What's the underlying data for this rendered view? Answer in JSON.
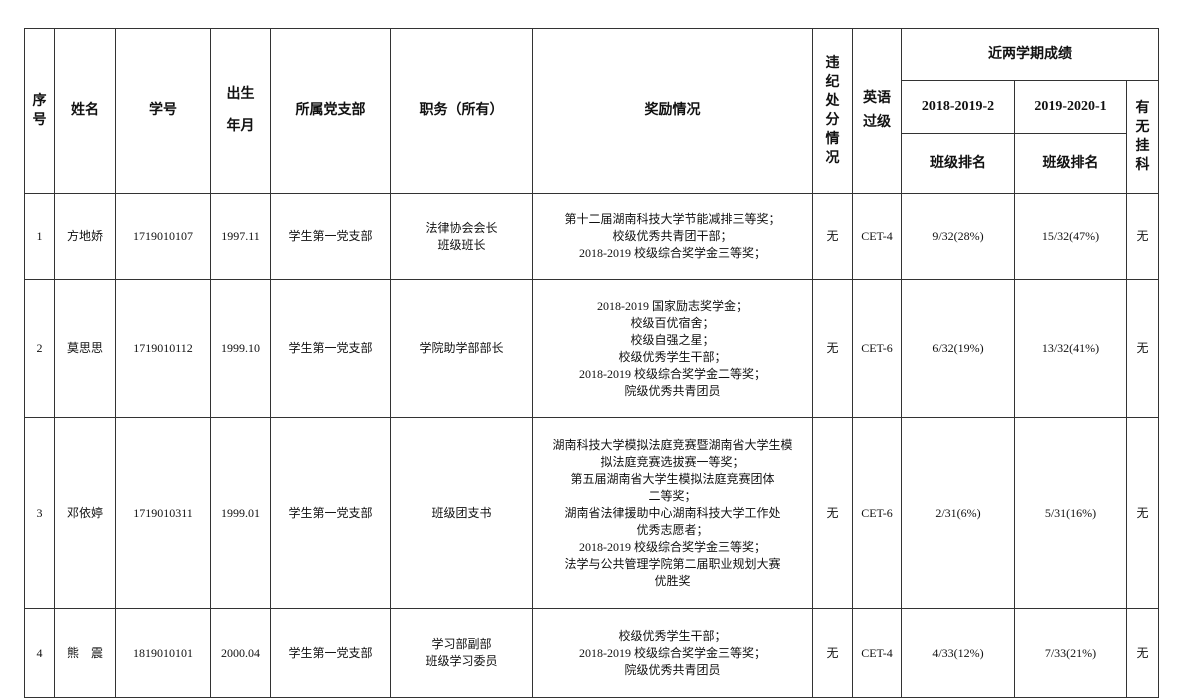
{
  "headers": {
    "index": "序\n号",
    "name": "姓名",
    "student_id": "学号",
    "birth": "出生\n年月",
    "branch": "所属党支部",
    "position": "职务（所有）",
    "awards": "奖励情况",
    "discipline": "违\n纪\n处\n分\n情\n况",
    "english": "英语\n过级",
    "grades": "近两学期成绩",
    "term1": "2018-2019-2",
    "term2": "2019-2020-1",
    "rank1": "班级排名",
    "rank2": "班级排名",
    "failed": "有\n无\n挂\n科"
  },
  "rows": [
    {
      "index": "1",
      "name": "方地娇",
      "student_id": "1719010107",
      "birth": "1997.11",
      "branch": "学生第一党支部",
      "position": "法律协会会长\n班级班长",
      "awards": "第十二届湖南科技大学节能减排三等奖；\n校级优秀共青团干部；\n2018-2019 校级综合奖学金三等奖；",
      "discipline": "无",
      "english": "CET-4",
      "rank1": "9/32(28%)",
      "rank2": "15/32(47%)",
      "failed": "无"
    },
    {
      "index": "2",
      "name": "莫思思",
      "student_id": "1719010112",
      "birth": "1999.10",
      "branch": "学生第一党支部",
      "position": "学院助学部部长",
      "awards": "2018-2019 国家励志奖学金；\n校级百优宿舍；\n校级自强之星；\n校级优秀学生干部；\n2018-2019 校级综合奖学金二等奖；\n院级优秀共青团员",
      "discipline": "无",
      "english": "CET-6",
      "rank1": "6/32(19%)",
      "rank2": "13/32(41%)",
      "failed": "无"
    },
    {
      "index": "3",
      "name": "邓依婷",
      "student_id": "1719010311",
      "birth": "1999.01",
      "branch": "学生第一党支部",
      "position": "班级团支书",
      "awards": "湖南科技大学模拟法庭竞赛暨湖南省大学生模\n拟法庭竞赛选拔赛一等奖；\n第五届湖南省大学生模拟法庭竞赛团体\n二等奖；\n湖南省法律援助中心湖南科技大学工作处\n优秀志愿者；\n2018-2019 校级综合奖学金三等奖；\n法学与公共管理学院第二届职业规划大赛\n优胜奖",
      "discipline": "无",
      "english": "CET-6",
      "rank1": "2/31(6%)",
      "rank2": "5/31(16%)",
      "failed": "无"
    },
    {
      "index": "4",
      "name": "熊　震",
      "student_id": "1819010101",
      "birth": "2000.04",
      "branch": "学生第一党支部",
      "position": "学习部副部\n班级学习委员",
      "awards": "校级优秀学生干部；\n2018-2019 校级综合奖学金三等奖；\n院级优秀共青团员",
      "discipline": "无",
      "english": "CET-4",
      "rank1": "4/33(12%)",
      "rank2": "7/33(21%)",
      "failed": "无"
    }
  ]
}
